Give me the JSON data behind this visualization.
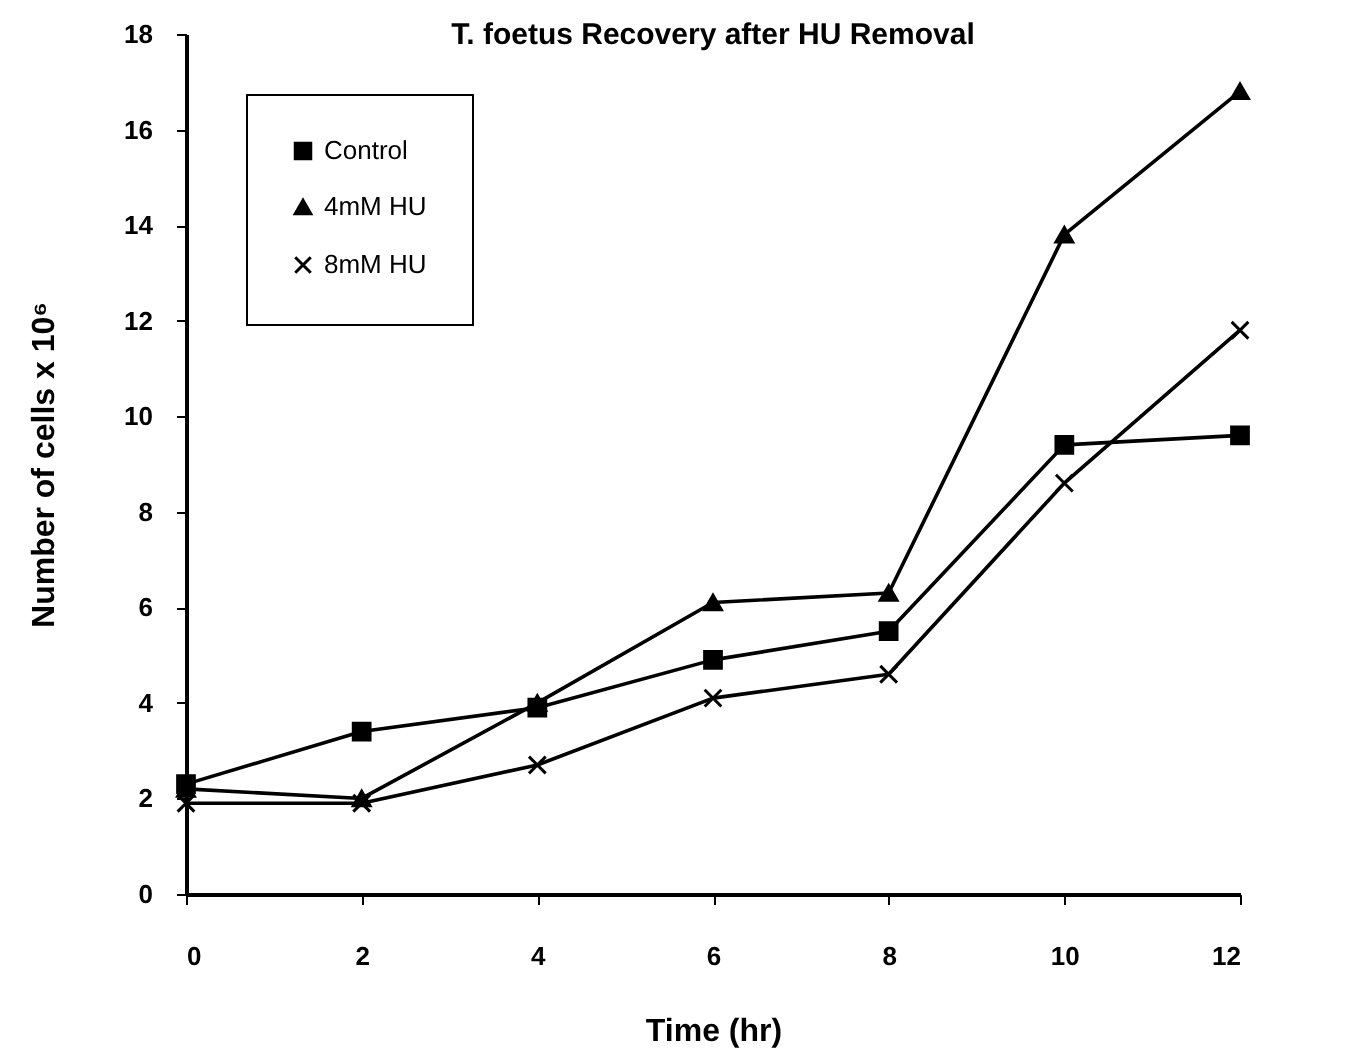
{
  "chart_data": {
    "type": "line",
    "title": "T. foetus Recovery  after HU Removal",
    "xlabel": "Time (hr)",
    "ylabel": "Number of cells  x 10⁶",
    "x": [
      0,
      2,
      4,
      6,
      8,
      10,
      12
    ],
    "series": [
      {
        "name": "Control",
        "color": "#000000",
        "marker": "square",
        "values": [
          2.3,
          3.4,
          3.9,
          4.9,
          5.5,
          9.4,
          9.6
        ]
      },
      {
        "name": "4mM HU",
        "color": "#000000",
        "marker": "triangle",
        "values": [
          2.2,
          2.0,
          4.0,
          6.1,
          6.3,
          13.8,
          16.8
        ]
      },
      {
        "name": "8mM HU",
        "color": "#000000",
        "marker": "cross",
        "values": [
          1.9,
          1.9,
          2.7,
          4.1,
          4.6,
          8.6,
          11.8
        ]
      }
    ],
    "xlim": [
      0,
      12
    ],
    "xticks": [
      0,
      2,
      4,
      6,
      8,
      10,
      12
    ],
    "ylim": [
      0,
      18
    ],
    "yticks": [
      0,
      2,
      4,
      6,
      8,
      10,
      12,
      14,
      16,
      18
    ],
    "grid": false,
    "legend": "top left",
    "line_style": "solid"
  }
}
